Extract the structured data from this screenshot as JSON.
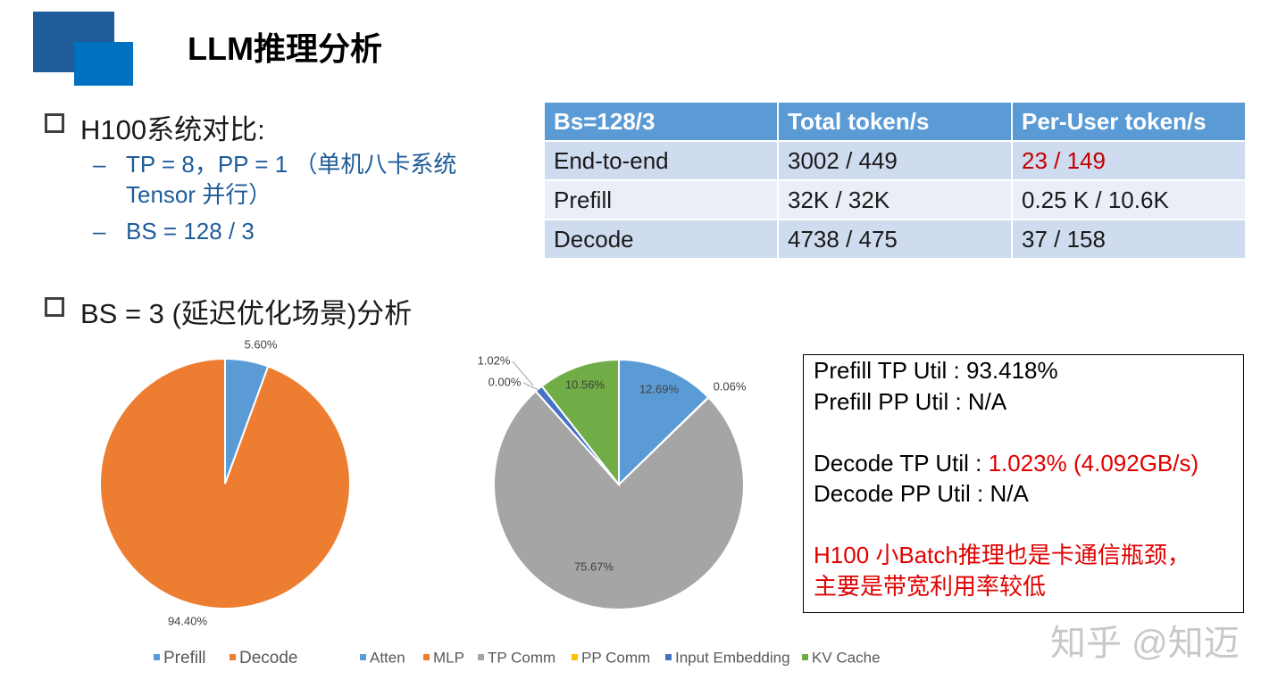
{
  "header": {
    "title": "LLM推理分析"
  },
  "bullets": [
    {
      "text": "H100系统对比:",
      "subs": [
        "TP = 8，PP = 1 （单机八卡系统",
        "Tensor 并行）",
        "BS = 128 / 3"
      ]
    },
    {
      "text": "BS = 3 (延迟优化场景)分析"
    }
  ],
  "table": {
    "header": [
      "Bs=128/3",
      "Total token/s",
      "Per-User token/s"
    ],
    "rows": [
      [
        "End-to-end",
        "3002 / 449",
        {
          "text": "23 / 149",
          "color": "#c00000"
        }
      ],
      [
        "Prefill",
        "32K / 32K",
        "0.25 K / 10.6K"
      ],
      [
        "Decode",
        "4738 / 475",
        "37 / 158"
      ]
    ]
  },
  "chart_data": [
    {
      "type": "pie",
      "categories": [
        "Prefill",
        "Decode"
      ],
      "values": [
        5.6,
        94.4
      ],
      "value_labels": [
        "5.60%",
        "94.40%"
      ],
      "colors": [
        "#5b9bd5",
        "#ed7d31"
      ]
    },
    {
      "type": "pie",
      "categories": [
        "Atten",
        "MLP",
        "TP Comm",
        "PP Comm",
        "Input Embedding",
        "KV Cache"
      ],
      "values": [
        12.69,
        0.06,
        75.67,
        0.0,
        1.02,
        10.56
      ],
      "value_labels": [
        "12.69%",
        "0.06%",
        "75.67%",
        "0.00%",
        "1.02%",
        "10.56%"
      ],
      "colors": [
        "#5b9bd5",
        "#ed7d31",
        "#a5a5a5",
        "#ffc000",
        "#4472c4",
        "#70ad47"
      ]
    }
  ],
  "textbox": {
    "lines": [
      [
        {
          "text": "Prefill TP Util : 93.418%"
        }
      ],
      [
        {
          "text": "Prefill PP Util : N/A"
        }
      ],
      [],
      [
        {
          "text": "Decode TP Util : "
        },
        {
          "text": "1.023% (4.092GB/s)",
          "color": "#e00000"
        }
      ],
      [
        {
          "text": "Decode PP Util : N/A"
        }
      ],
      [],
      [
        {
          "text": "H100 小Batch推理也是卡通信瓶颈，",
          "color": "#e00000"
        }
      ],
      [
        {
          "text": "主要是带宽利用率较低",
          "color": "#e00000"
        }
      ]
    ]
  },
  "watermark": "知乎 @知迈"
}
